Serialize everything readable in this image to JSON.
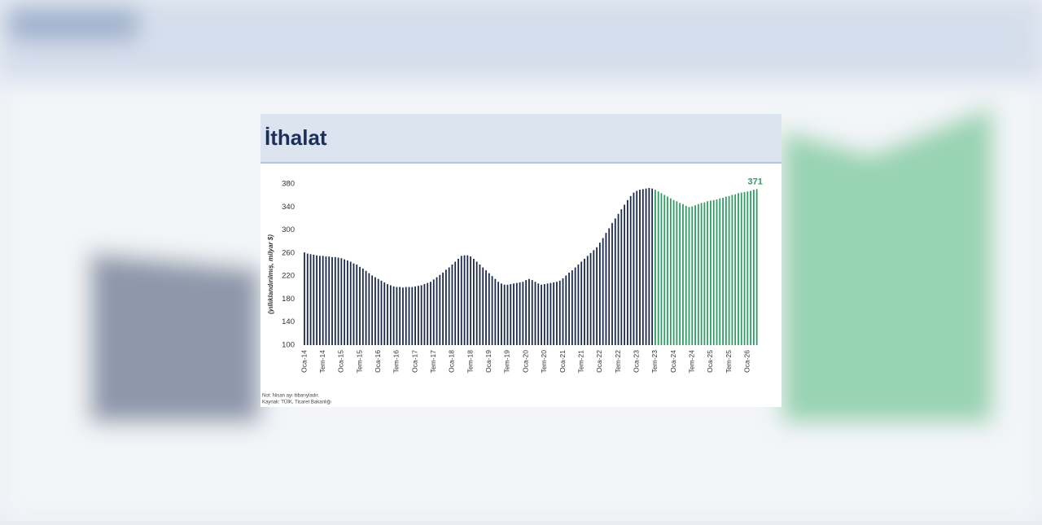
{
  "chart_data": {
    "type": "bar",
    "title": "İthalat",
    "y_label": "(yıllıklandırılmış, milyar $)",
    "notes": [
      "Not: Nisan ayı itibarıyladır.",
      "Kaynak: TÜİK, Ticaret Bakanlığı"
    ],
    "categories": [
      "Oca-14",
      null,
      null,
      null,
      null,
      null,
      "Tem-14",
      null,
      null,
      null,
      null,
      null,
      "Oca-15",
      null,
      null,
      null,
      null,
      null,
      "Tem-15",
      null,
      null,
      null,
      null,
      null,
      "Oca-16",
      null,
      null,
      null,
      null,
      null,
      "Tem-16",
      null,
      null,
      null,
      null,
      null,
      "Oca-17",
      null,
      null,
      null,
      null,
      null,
      "Tem-17",
      null,
      null,
      null,
      null,
      null,
      "Oca-18",
      null,
      null,
      null,
      null,
      null,
      "Tem-18",
      null,
      null,
      null,
      null,
      null,
      "Oca-19",
      null,
      null,
      null,
      null,
      null,
      "Tem-19",
      null,
      null,
      null,
      null,
      null,
      "Oca-20",
      null,
      null,
      null,
      null,
      null,
      "Tem-20",
      null,
      null,
      null,
      null,
      null,
      "Oca-21",
      null,
      null,
      null,
      null,
      null,
      "Tem-21",
      null,
      null,
      null,
      null,
      null,
      "Oca-22",
      null,
      null,
      null,
      null,
      null,
      "Tem-22",
      null,
      null,
      null,
      null,
      null,
      "Oca-23",
      null,
      null,
      null,
      null,
      null,
      "Tem-23",
      null,
      null,
      null,
      null,
      null,
      "Oca-24",
      null,
      null,
      null,
      null,
      null,
      "Tem-24",
      null,
      null,
      null,
      null,
      null,
      "Oca-25",
      null,
      null,
      null,
      null,
      null,
      "Tem-25",
      null,
      null,
      null,
      null,
      null,
      "Oca-26",
      null,
      null,
      null
    ],
    "values": [
      261,
      259,
      258,
      257,
      256,
      255,
      255,
      254,
      254,
      253,
      253,
      252,
      251,
      249,
      247,
      245,
      242,
      240,
      236,
      233,
      229,
      225,
      221,
      218,
      215,
      212,
      209,
      206,
      204,
      202,
      201,
      201,
      200,
      201,
      201,
      201,
      202,
      203,
      204,
      206,
      208,
      210,
      214,
      218,
      222,
      226,
      231,
      235,
      240,
      245,
      250,
      255,
      256,
      256,
      254,
      250,
      245,
      240,
      235,
      230,
      225,
      220,
      215,
      210,
      207,
      205,
      205,
      206,
      207,
      208,
      209,
      210,
      213,
      215,
      213,
      210,
      207,
      205,
      206,
      207,
      208,
      209,
      210,
      212,
      216,
      221,
      226,
      230,
      235,
      240,
      245,
      250,
      255,
      260,
      265,
      270,
      278,
      286,
      295,
      303,
      312,
      320,
      328,
      336,
      344,
      352,
      359,
      365,
      368,
      370,
      371,
      372,
      373,
      372,
      370,
      367,
      364,
      361,
      358,
      355,
      352,
      350,
      347,
      345,
      342,
      340,
      341,
      343,
      345,
      347,
      348,
      350,
      351,
      352,
      353,
      355,
      356,
      358,
      359,
      361,
      362,
      364,
      365,
      366,
      367,
      368,
      370,
      371
    ],
    "colors": [
      "#1b2a4a",
      "#1b2a4a",
      "#1b2a4a",
      "#1b2a4a",
      "#1b2a4a",
      "#1b2a4a",
      "#1b2a4a",
      "#1b2a4a",
      "#1b2a4a",
      "#1b2a4a",
      "#1b2a4a",
      "#1b2a4a",
      "#1b2a4a",
      "#1b2a4a",
      "#1b2a4a",
      "#1b2a4a",
      "#1b2a4a",
      "#1b2a4a",
      "#1b2a4a",
      "#1b2a4a",
      "#1b2a4a",
      "#1b2a4a",
      "#1b2a4a",
      "#1b2a4a",
      "#1b2a4a",
      "#1b2a4a",
      "#1b2a4a",
      "#1b2a4a",
      "#1b2a4a",
      "#1b2a4a",
      "#1b2a4a",
      "#1b2a4a",
      "#1b2a4a",
      "#1b2a4a",
      "#1b2a4a",
      "#1b2a4a",
      "#1b2a4a",
      "#1b2a4a",
      "#1b2a4a",
      "#1b2a4a",
      "#1b2a4a",
      "#1b2a4a",
      "#1b2a4a",
      "#1b2a4a",
      "#1b2a4a",
      "#1b2a4a",
      "#1b2a4a",
      "#1b2a4a",
      "#1b2a4a",
      "#1b2a4a",
      "#1b2a4a",
      "#1b2a4a",
      "#1b2a4a",
      "#1b2a4a",
      "#1b2a4a",
      "#1b2a4a",
      "#1b2a4a",
      "#1b2a4a",
      "#1b2a4a",
      "#1b2a4a",
      "#1b2a4a",
      "#1b2a4a",
      "#1b2a4a",
      "#1b2a4a",
      "#1b2a4a",
      "#1b2a4a",
      "#1b2a4a",
      "#1b2a4a",
      "#1b2a4a",
      "#1b2a4a",
      "#1b2a4a",
      "#1b2a4a",
      "#1b2a4a",
      "#1b2a4a",
      "#1b2a4a",
      "#1b2a4a",
      "#1b2a4a",
      "#1b2a4a",
      "#1b2a4a",
      "#1b2a4a",
      "#1b2a4a",
      "#1b2a4a",
      "#1b2a4a",
      "#1b2a4a",
      "#1b2a4a",
      "#1b2a4a",
      "#1b2a4a",
      "#1b2a4a",
      "#1b2a4a",
      "#1b2a4a",
      "#1b2a4a",
      "#1b2a4a",
      "#1b2a4a",
      "#1b2a4a",
      "#1b2a4a",
      "#1b2a4a",
      "#1b2a4a",
      "#1b2a4a",
      "#1b2a4a",
      "#1b2a4a",
      "#1b2a4a",
      "#1b2a4a",
      "#1b2a4a",
      "#1b2a4a",
      "#1b2a4a",
      "#1b2a4a",
      "#1b2a4a",
      "#1b2a4a",
      "#1b2a4a",
      "#1b2a4a",
      "#1b2a4a",
      "#1b2a4a",
      "#1b2a4a",
      "#1b2a4a",
      "#2f9d63",
      "#2f9d63",
      "#2f9d63",
      "#2f9d63",
      "#2f9d63",
      "#2f9d63",
      "#2f9d63",
      "#2f9d63",
      "#2f9d63",
      "#2f9d63",
      "#2f9d63",
      "#2f9d63",
      "#2f9d63",
      "#2f9d63",
      "#2f9d63",
      "#2f9d63",
      "#2f9d63",
      "#2f9d63",
      "#2f9d63",
      "#2f9d63",
      "#2f9d63",
      "#2f9d63",
      "#2f9d63",
      "#2f9d63",
      "#2f9d63",
      "#2f9d63",
      "#2f9d63",
      "#2f9d63",
      "#2f9d63",
      "#2f9d63",
      "#2f9d63",
      "#2f9d63",
      "#2f9d63",
      "#2f9d63"
    ],
    "label_last": true,
    "ylim": [
      100,
      380
    ],
    "yticks": [
      100,
      140,
      180,
      220,
      260,
      300,
      340,
      380
    ]
  }
}
